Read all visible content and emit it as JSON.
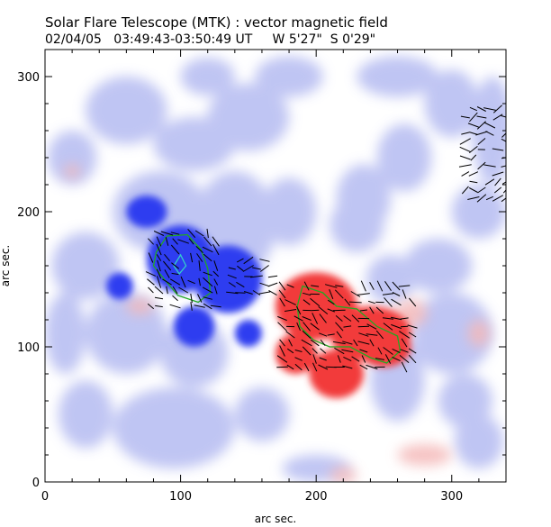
{
  "header": {
    "title": "Solar Flare Telescope (MTK) : vector magnetic field",
    "subtitle": "02/04/05   03:49:43-03:50:49 UT     W 5'27\"  S 0'29\""
  },
  "chart_data": {
    "type": "heatmap",
    "xlabel": "arc sec.",
    "ylabel": "arc sec.",
    "xlim": [
      0,
      340
    ],
    "ylim": [
      0,
      320
    ],
    "xticks": [
      0,
      100,
      200,
      300
    ],
    "yticks": [
      0,
      100,
      200,
      300
    ],
    "grid": false,
    "colors": {
      "negative_polarity": "#2f3cf0",
      "negative_weak": "#b9bff2",
      "positive_polarity": "#f23b3b",
      "positive_weak": "#f4b9b9",
      "contour": "#22aa22",
      "vector": "#000000"
    }
  }
}
